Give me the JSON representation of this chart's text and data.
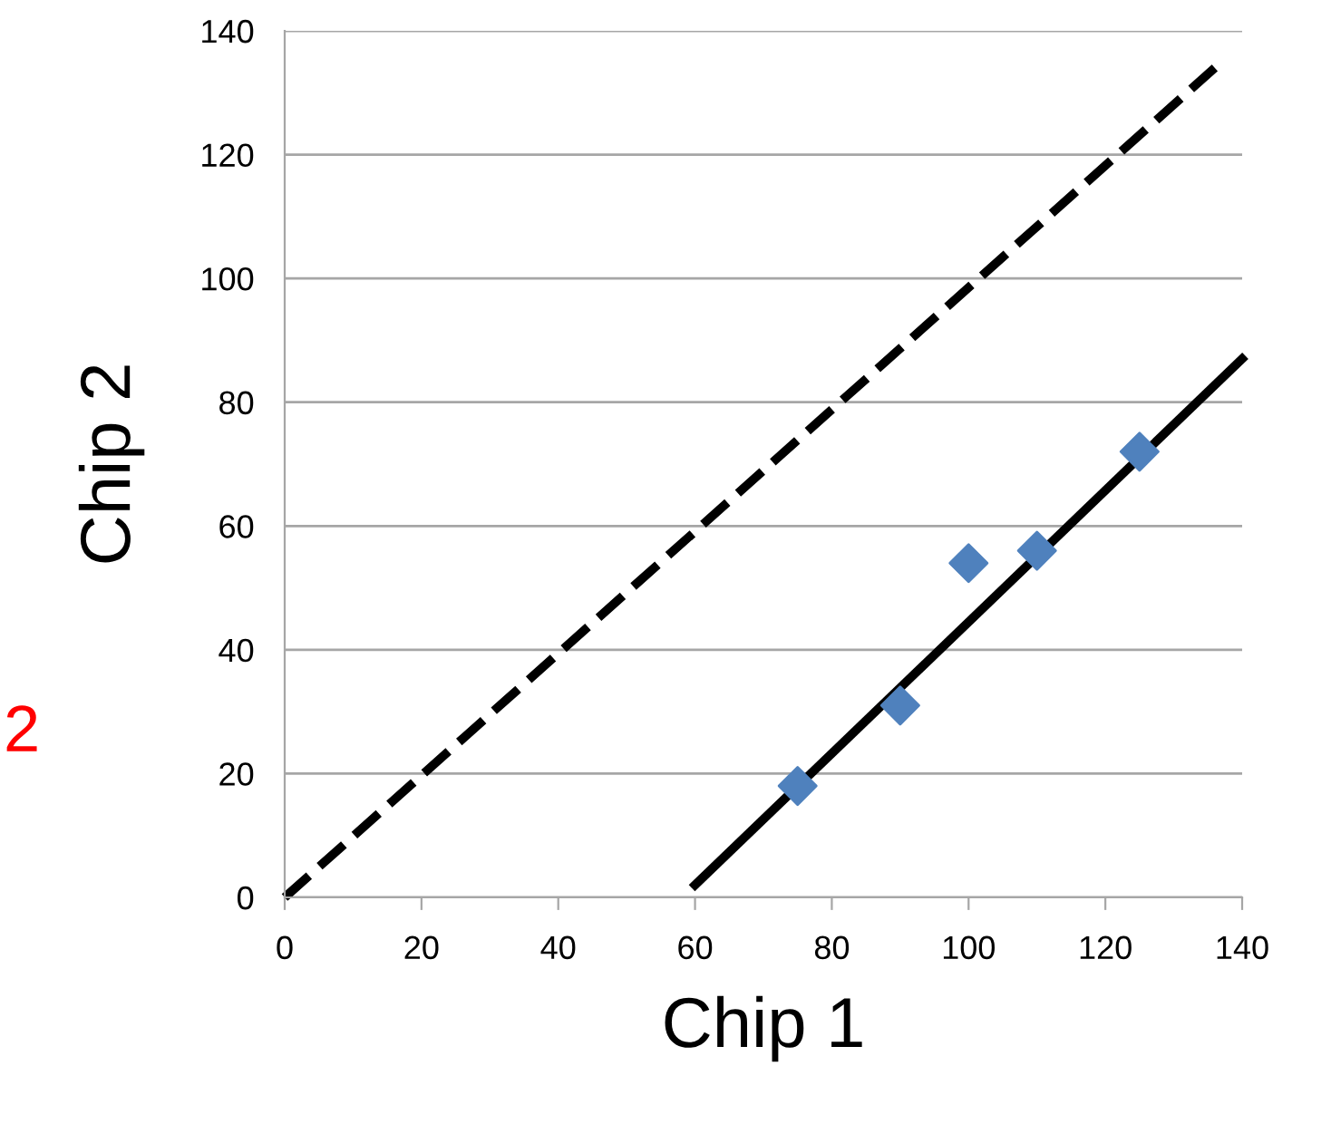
{
  "chart_data": {
    "type": "scatter",
    "xlabel": "Chip 1",
    "ylabel": "Chip 2",
    "xlim": [
      0,
      140
    ],
    "ylim": [
      0,
      140
    ],
    "xticks": [
      0,
      20,
      40,
      60,
      80,
      100,
      120,
      140
    ],
    "yticks": [
      0,
      20,
      40,
      60,
      80,
      100,
      120,
      140
    ],
    "grid": "y",
    "annotations": [
      "2"
    ],
    "series": [
      {
        "color": "#4f81bd",
        "marker": "diamond",
        "x": [
          75,
          90,
          100,
          110,
          125
        ],
        "values": [
          18,
          31,
          54,
          56,
          72
        ]
      },
      {
        "type": "line",
        "color": "#000000",
        "line_style": "dashed",
        "marker": "none",
        "x": [
          0,
          136
        ],
        "values": [
          0,
          134
        ]
      },
      {
        "type": "line",
        "color": "#000000",
        "line_style": "solid",
        "marker": "none",
        "x": [
          60,
          140
        ],
        "values": [
          2,
          87
        ]
      }
    ]
  }
}
